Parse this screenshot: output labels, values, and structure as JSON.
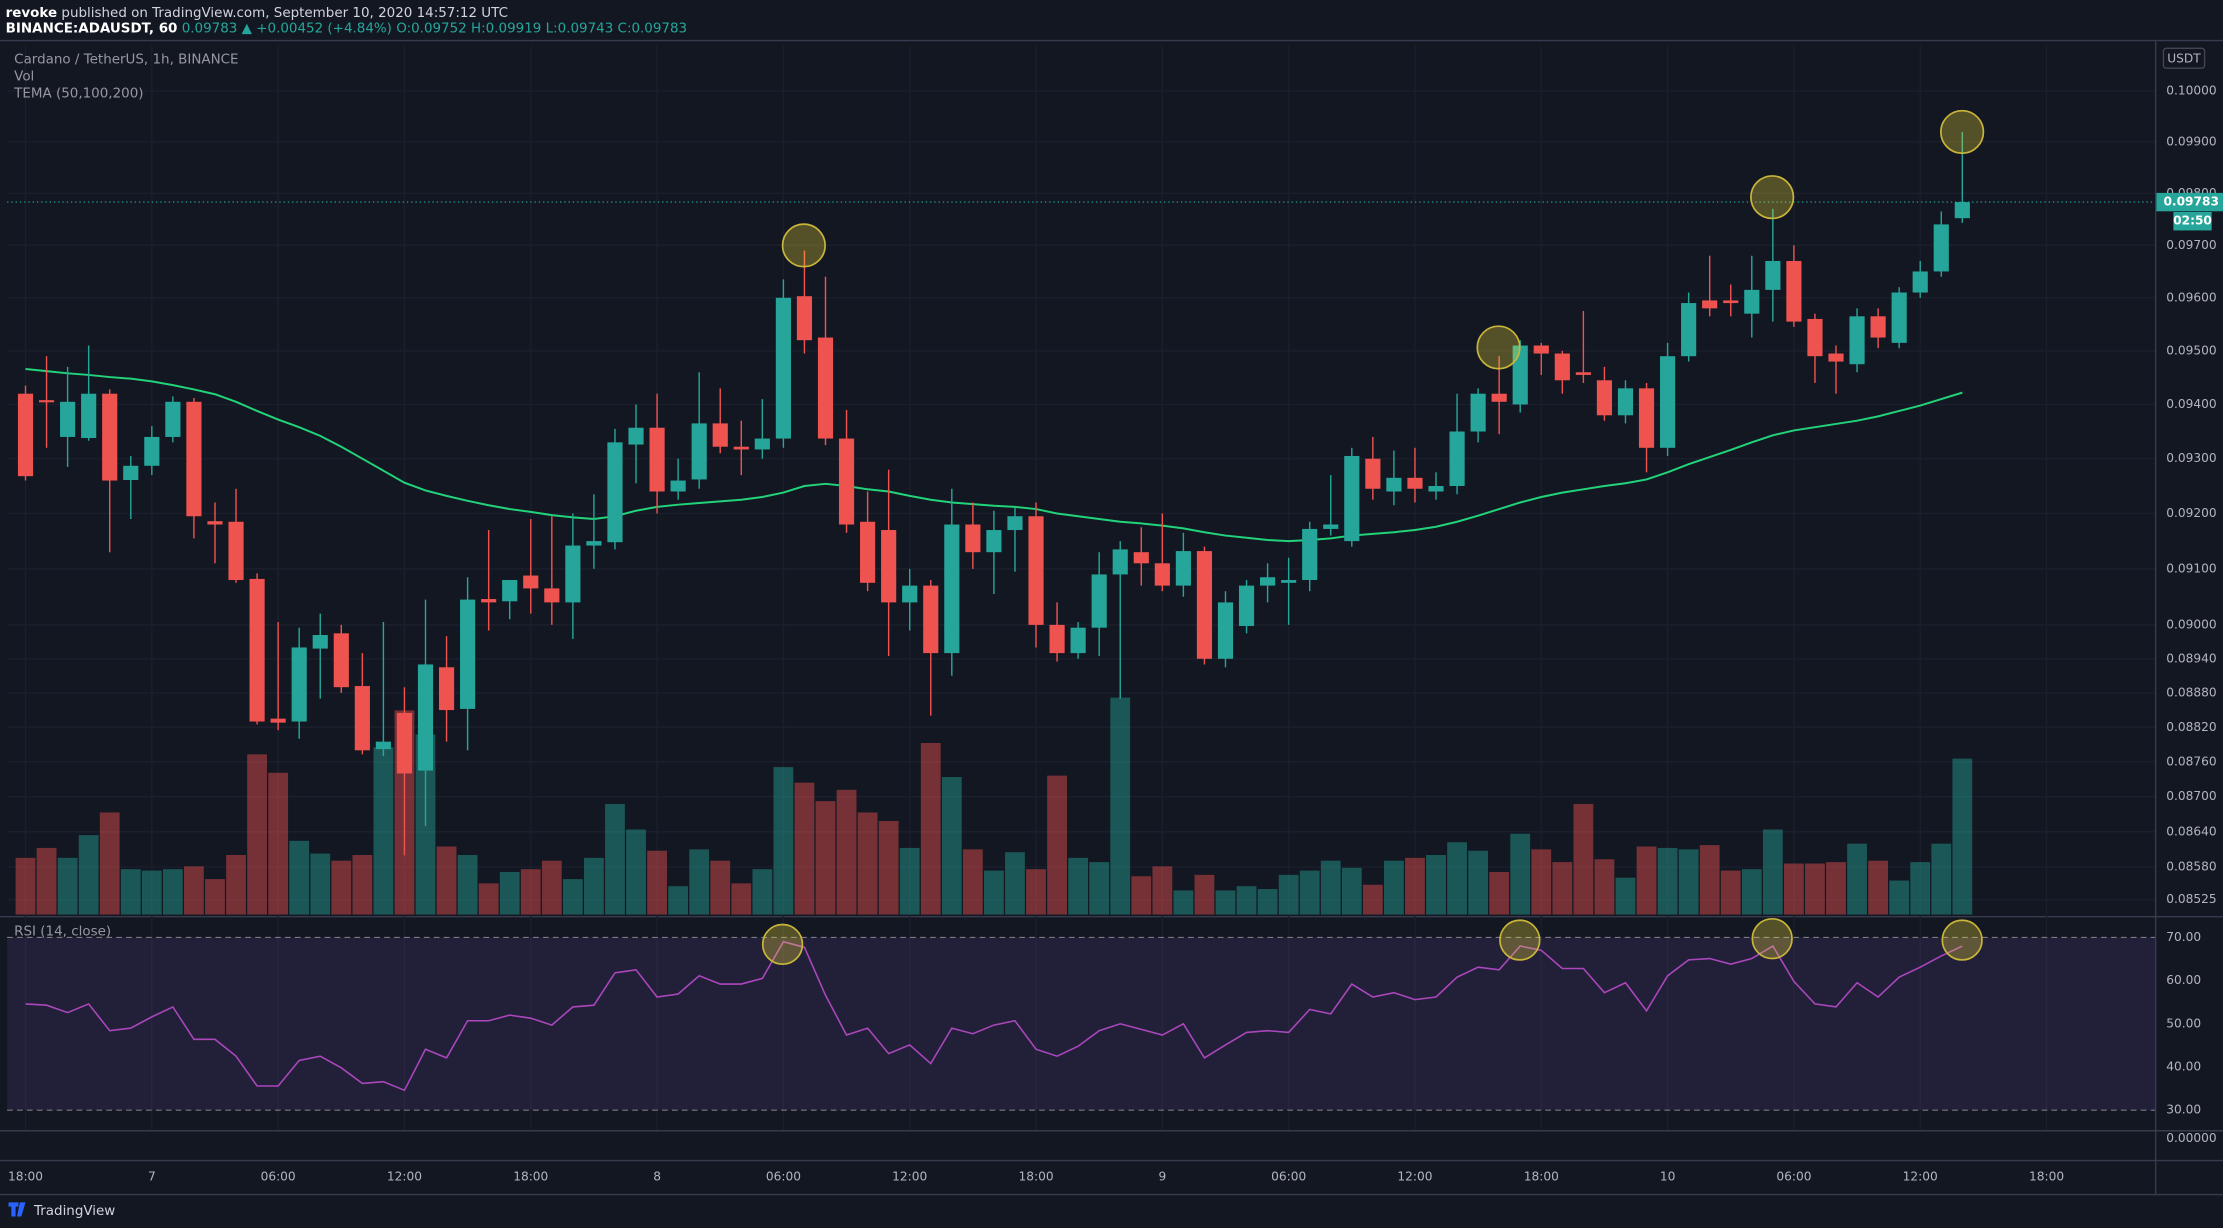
{
  "header": {
    "publisher": "revoke",
    "published": "published on TradingView.com, September 10, 2020 14:57:12 UTC",
    "symbol": "BINANCE:ADAUSDT, 60",
    "last": "0.09783",
    "change": "▲ +0.00452 (+4.84%)",
    "open": "O:0.09752",
    "high": "H:0.09919",
    "low": "L:0.09743",
    "close": "C:0.09783"
  },
  "footer": {
    "brand": "TradingView"
  },
  "chart_data": {
    "type": "candlestick",
    "title": "Cardano / TetherUS, 1h, BINANCE",
    "currency": "USDT",
    "log_scale": true,
    "grid": true,
    "up_color": "#26a69a",
    "down_color": "#ef5350",
    "ylim": [
      0.085,
      0.1009
    ],
    "yticks": [
      {
        "value": 0.1,
        "label": "0.10000"
      },
      {
        "value": 0.099,
        "label": "0.09900"
      },
      {
        "value": 0.098,
        "label": "0.09800"
      },
      {
        "value": 0.097,
        "label": "0.09700"
      },
      {
        "value": 0.096,
        "label": "0.09600"
      },
      {
        "value": 0.095,
        "label": "0.09500"
      },
      {
        "value": 0.094,
        "label": "0.09400"
      },
      {
        "value": 0.093,
        "label": "0.09300"
      },
      {
        "value": 0.092,
        "label": "0.09200"
      },
      {
        "value": 0.091,
        "label": "0.09100"
      },
      {
        "value": 0.09,
        "label": "0.09000"
      },
      {
        "value": 0.0894,
        "label": "0.08940"
      },
      {
        "value": 0.0888,
        "label": "0.08880"
      },
      {
        "value": 0.0882,
        "label": "0.08820"
      },
      {
        "value": 0.0876,
        "label": "0.08760"
      },
      {
        "value": 0.087,
        "label": "0.08700"
      },
      {
        "value": 0.0864,
        "label": "0.08640"
      },
      {
        "value": 0.0858,
        "label": "0.08580"
      },
      {
        "value": 0.08525,
        "label": "0.08525"
      }
    ],
    "xlim": [
      -0.875,
      101.15
    ],
    "xticks": [
      {
        "value": 0,
        "label": "18:00"
      },
      {
        "value": 6,
        "label": "7"
      },
      {
        "value": 12,
        "label": "06:00"
      },
      {
        "value": 18,
        "label": "12:00"
      },
      {
        "value": 24,
        "label": "18:00"
      },
      {
        "value": 30,
        "label": "8"
      },
      {
        "value": 36,
        "label": "06:00"
      },
      {
        "value": 42,
        "label": "12:00"
      },
      {
        "value": 48,
        "label": "18:00"
      },
      {
        "value": 54,
        "label": "9"
      },
      {
        "value": 60,
        "label": "06:00"
      },
      {
        "value": 66,
        "label": "12:00"
      },
      {
        "value": 72,
        "label": "18:00"
      },
      {
        "value": 78,
        "label": "10"
      },
      {
        "value": 84,
        "label": "06:00"
      },
      {
        "value": 90,
        "label": "12:00"
      },
      {
        "value": 96,
        "label": "18:00"
      }
    ],
    "open": [
      0.0942,
      0.09408,
      0.0934,
      0.09338,
      0.0942,
      0.09261,
      0.09287,
      0.0934,
      0.09405,
      0.09186,
      0.09185,
      0.09082,
      0.08835,
      0.0883,
      0.08958,
      0.08985,
      0.08892,
      0.08782,
      0.08845,
      0.08745,
      0.08925,
      0.08852,
      0.09046,
      0.09042,
      0.09088,
      0.09065,
      0.0904,
      0.09142,
      0.09148,
      0.09326,
      0.09357,
      0.0924,
      0.09262,
      0.09365,
      0.09322,
      0.09317,
      0.09337,
      0.09603,
      0.09525,
      0.09337,
      0.09185,
      0.0917,
      0.0904,
      0.0907,
      0.0895,
      0.0918,
      0.0913,
      0.0917,
      0.09195,
      0.09,
      0.0895,
      0.08995,
      0.0909,
      0.0913,
      0.0911,
      0.0907,
      0.09132,
      0.0894,
      0.08998,
      0.0907,
      0.09075,
      0.0908,
      0.09172,
      0.0915,
      0.093,
      0.0924,
      0.09265,
      0.0924,
      0.0925,
      0.0935,
      0.0942,
      0.094,
      0.0951,
      0.09495,
      0.0946,
      0.09445,
      0.0938,
      0.0943,
      0.0932,
      0.0949,
      0.09595,
      0.09595,
      0.0957,
      0.09615,
      0.0967,
      0.0956,
      0.09495,
      0.09475,
      0.09565,
      0.09515,
      0.0961,
      0.0965,
      0.09752
    ],
    "high": [
      0.09435,
      0.0949,
      0.0947,
      0.0951,
      0.09428,
      0.09305,
      0.0936,
      0.09415,
      0.09412,
      0.0922,
      0.09245,
      0.09092,
      0.09005,
      0.08995,
      0.0902,
      0.09,
      0.0895,
      0.09005,
      0.0889,
      0.09045,
      0.0898,
      0.09085,
      0.0917,
      0.0908,
      0.0919,
      0.09195,
      0.092,
      0.09235,
      0.09355,
      0.094,
      0.0942,
      0.093,
      0.0946,
      0.0943,
      0.0937,
      0.0941,
      0.09635,
      0.0969,
      0.0964,
      0.0939,
      0.0924,
      0.0928,
      0.091,
      0.0908,
      0.09245,
      0.0922,
      0.09205,
      0.0921,
      0.0922,
      0.0904,
      0.09005,
      0.0913,
      0.0915,
      0.09175,
      0.092,
      0.09165,
      0.0914,
      0.0906,
      0.0908,
      0.0911,
      0.0912,
      0.09185,
      0.0927,
      0.0932,
      0.0934,
      0.09315,
      0.0932,
      0.09275,
      0.0942,
      0.0943,
      0.0949,
      0.0952,
      0.09515,
      0.095,
      0.09575,
      0.0947,
      0.09445,
      0.0944,
      0.09515,
      0.0961,
      0.0968,
      0.09625,
      0.0968,
      0.0977,
      0.097,
      0.0957,
      0.0951,
      0.0958,
      0.0958,
      0.0962,
      0.0967,
      0.09765,
      0.09919
    ],
    "low": [
      0.0926,
      0.0932,
      0.09285,
      0.09333,
      0.0913,
      0.0919,
      0.0927,
      0.0933,
      0.09155,
      0.0911,
      0.09075,
      0.08825,
      0.08815,
      0.088,
      0.0887,
      0.0888,
      0.08773,
      0.0877,
      0.086,
      0.0865,
      0.08795,
      0.0878,
      0.0899,
      0.0901,
      0.0902,
      0.09,
      0.08975,
      0.091,
      0.09135,
      0.09255,
      0.092,
      0.09225,
      0.09245,
      0.0931,
      0.0927,
      0.093,
      0.0932,
      0.09495,
      0.09325,
      0.09165,
      0.0906,
      0.08945,
      0.0899,
      0.0884,
      0.0891,
      0.091,
      0.09055,
      0.09095,
      0.0896,
      0.08935,
      0.0894,
      0.08945,
      0.0887,
      0.0907,
      0.0906,
      0.0905,
      0.0893,
      0.08925,
      0.08985,
      0.0904,
      0.09,
      0.0906,
      0.0916,
      0.0914,
      0.09225,
      0.09215,
      0.0922,
      0.09225,
      0.09235,
      0.0933,
      0.09345,
      0.09385,
      0.09455,
      0.0942,
      0.0944,
      0.0937,
      0.09365,
      0.09275,
      0.09305,
      0.0948,
      0.09565,
      0.09565,
      0.09525,
      0.09555,
      0.09545,
      0.0944,
      0.0942,
      0.0946,
      0.09505,
      0.09505,
      0.096,
      0.0964,
      0.09743
    ],
    "close": [
      0.09268,
      0.09404,
      0.09405,
      0.0942,
      0.0926,
      0.09287,
      0.0934,
      0.09405,
      0.09195,
      0.0918,
      0.0908,
      0.0883,
      0.08828,
      0.0896,
      0.08982,
      0.0889,
      0.0878,
      0.08795,
      0.0874,
      0.0893,
      0.0885,
      0.09045,
      0.0904,
      0.0908,
      0.09065,
      0.0904,
      0.09142,
      0.0915,
      0.0933,
      0.09357,
      0.0924,
      0.0926,
      0.09365,
      0.09322,
      0.09317,
      0.09337,
      0.096,
      0.0952,
      0.09337,
      0.0918,
      0.09075,
      0.0904,
      0.0907,
      0.0895,
      0.0918,
      0.0913,
      0.0917,
      0.09195,
      0.09,
      0.0895,
      0.08995,
      0.0909,
      0.09135,
      0.0911,
      0.0907,
      0.09132,
      0.0894,
      0.0904,
      0.0907,
      0.09085,
      0.0908,
      0.09172,
      0.0918,
      0.09305,
      0.09245,
      0.09265,
      0.09245,
      0.0925,
      0.0935,
      0.0942,
      0.09405,
      0.0951,
      0.09495,
      0.09445,
      0.09455,
      0.0938,
      0.0943,
      0.0932,
      0.0949,
      0.0959,
      0.0958,
      0.0959,
      0.09615,
      0.0967,
      0.09555,
      0.0949,
      0.0948,
      0.09565,
      0.09525,
      0.0961,
      0.0965,
      0.0974,
      0.09783
    ],
    "volume": {
      "name": "Vol",
      "ylim": [
        0,
        160
      ],
      "values": [
        40,
        47,
        40,
        56,
        72,
        32,
        31,
        32,
        34,
        25,
        42,
        113,
        100,
        52,
        43,
        38,
        42,
        118,
        144,
        127,
        48,
        42,
        22,
        30,
        32,
        38,
        25,
        40,
        78,
        60,
        45,
        20,
        46,
        38,
        22,
        32,
        104,
        93,
        80,
        88,
        72,
        66,
        47,
        121,
        97,
        46,
        31,
        44,
        32,
        98,
        40,
        37,
        153,
        27,
        34,
        17,
        28,
        17,
        20,
        18,
        28,
        31,
        38,
        33,
        21,
        38,
        40,
        42,
        51,
        45,
        30,
        57,
        46,
        37,
        78,
        39,
        26,
        48,
        47,
        46,
        49,
        31,
        32,
        60,
        36,
        36,
        37,
        50,
        38,
        24,
        37,
        50,
        110
      ]
    },
    "tema": {
      "name": "TEMA (50,100,200)",
      "color": "#22d37a",
      "values": [
        0.09466,
        0.09462,
        0.09458,
        0.09455,
        0.09451,
        0.09448,
        0.09443,
        0.09436,
        0.09428,
        0.09419,
        0.09405,
        0.09388,
        0.09372,
        0.09358,
        0.09342,
        0.09322,
        0.093,
        0.09278,
        0.09256,
        0.09242,
        0.09232,
        0.09223,
        0.09215,
        0.09208,
        0.09203,
        0.09197,
        0.09193,
        0.0919,
        0.09195,
        0.09205,
        0.09212,
        0.09216,
        0.09219,
        0.09222,
        0.09225,
        0.0923,
        0.09238,
        0.0925,
        0.09254,
        0.0925,
        0.09244,
        0.0924,
        0.09232,
        0.09225,
        0.0922,
        0.09217,
        0.09214,
        0.09212,
        0.09208,
        0.092,
        0.09195,
        0.0919,
        0.09185,
        0.09182,
        0.09178,
        0.09173,
        0.09166,
        0.0916,
        0.09156,
        0.09152,
        0.0915,
        0.09152,
        0.09155,
        0.0916,
        0.09163,
        0.09166,
        0.0917,
        0.09176,
        0.09185,
        0.09196,
        0.09208,
        0.0922,
        0.0923,
        0.09238,
        0.09244,
        0.0925,
        0.09255,
        0.09262,
        0.09275,
        0.0929,
        0.09303,
        0.09316,
        0.0933,
        0.09343,
        0.09352,
        0.09358,
        0.09364,
        0.0937,
        0.09378,
        0.09388,
        0.09398,
        0.0941,
        0.09422
      ]
    },
    "rsi": {
      "name": "RSI (14, close)",
      "color": "#ab47bc",
      "ylim": [
        25.4,
        74.3
      ],
      "band": [
        30,
        70
      ],
      "yticks": [
        {
          "value": 70,
          "label": "70.00"
        },
        {
          "value": 60,
          "label": "60.00"
        },
        {
          "value": 50,
          "label": "50.00"
        },
        {
          "value": 40,
          "label": "40.00"
        },
        {
          "value": 30,
          "label": "30.00"
        }
      ],
      "values": [
        54.6,
        54.3,
        52.6,
        54.6,
        48.4,
        49.0,
        51.6,
        53.9,
        46.4,
        46.4,
        42.5,
        35.6,
        35.6,
        41.5,
        42.5,
        39.8,
        36.2,
        36.6,
        34.6,
        44.1,
        42.1,
        50.7,
        50.7,
        52.0,
        51.3,
        49.7,
        53.9,
        54.3,
        61.8,
        62.5,
        56.2,
        56.9,
        61.1,
        59.2,
        59.2,
        60.5,
        69.0,
        67.7,
        56.6,
        47.4,
        49.0,
        43.1,
        45.1,
        40.8,
        49.0,
        47.7,
        49.7,
        50.7,
        44.1,
        42.5,
        44.8,
        48.4,
        50.0,
        48.7,
        47.4,
        50.0,
        42.1,
        45.1,
        48.0,
        48.4,
        48.0,
        53.3,
        52.3,
        59.2,
        56.2,
        57.2,
        55.6,
        56.2,
        60.8,
        63.1,
        62.5,
        68.0,
        67.0,
        62.8,
        62.8,
        57.2,
        59.5,
        53.0,
        61.1,
        64.8,
        65.1,
        63.8,
        65.1,
        68.0,
        59.8,
        54.6,
        53.9,
        59.5,
        56.2,
        60.8,
        63.1,
        65.7,
        68.0
      ]
    },
    "bottom_pane_label": "0.00000",
    "last_price": 0.09783,
    "countdown": "02:50"
  }
}
